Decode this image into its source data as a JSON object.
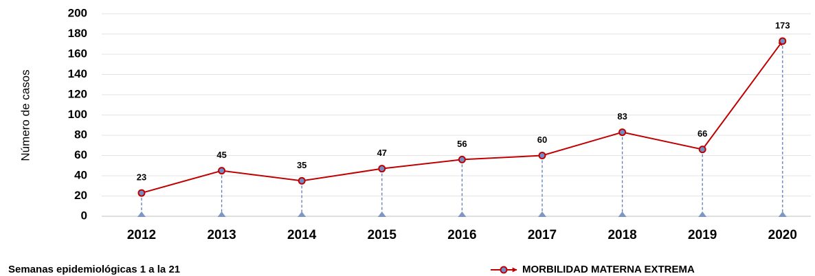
{
  "chart_data": {
    "type": "line",
    "y_label": "Número de casos",
    "footnote": "Semanas epidemiológicas 1 a la 21",
    "categories": [
      "2012",
      "2013",
      "2014",
      "2015",
      "2016",
      "2017",
      "2018",
      "2019",
      "2020"
    ],
    "series": [
      {
        "name": "MORBILIDAD MATERNA EXTREMA",
        "color": "#c00000",
        "values": [
          23,
          45,
          35,
          47,
          56,
          60,
          83,
          66,
          173
        ]
      }
    ],
    "ylim": [
      0,
      200
    ],
    "yticks": [
      0,
      20,
      40,
      60,
      80,
      100,
      120,
      140,
      160,
      180,
      200
    ],
    "grid": true,
    "legend": "bottom-right"
  }
}
